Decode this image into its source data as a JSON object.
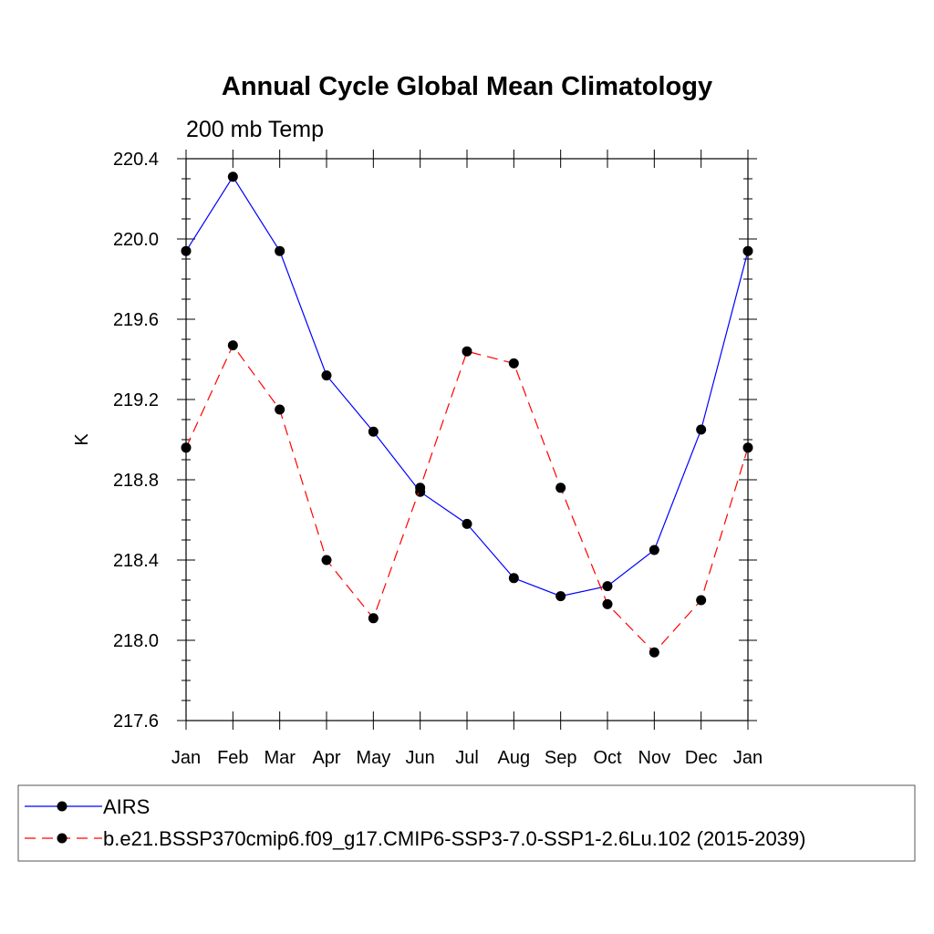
{
  "chart_data": {
    "type": "line",
    "title": "Annual Cycle Global Mean Climatology",
    "subtitle": "200 mb Temp",
    "xlabel": "",
    "ylabel": "K",
    "categories": [
      "Jan",
      "Feb",
      "Mar",
      "Apr",
      "May",
      "Jun",
      "Jul",
      "Aug",
      "Sep",
      "Oct",
      "Nov",
      "Dec",
      "Jan"
    ],
    "ylim": [
      217.6,
      220.4
    ],
    "yticks": [
      217.6,
      218.0,
      218.4,
      218.8,
      219.2,
      219.6,
      220.0,
      220.4
    ],
    "ytick_labels": [
      "217.6",
      "218.0",
      "218.4",
      "218.8",
      "219.2",
      "219.6",
      "220.0",
      "220.4"
    ],
    "series": [
      {
        "name": "AIRS",
        "color": "#0000ff",
        "dash": "solid",
        "values": [
          219.94,
          220.31,
          219.94,
          219.32,
          219.04,
          218.74,
          218.58,
          218.31,
          218.22,
          218.27,
          218.45,
          219.05,
          219.94
        ]
      },
      {
        "name": "b.e21.BSSP370cmip6.f09_g17.CMIP6-SSP3-7.0-SSP1-2.6Lu.102 (2015-2039)",
        "color": "#ff0000",
        "dash": "dashed",
        "values": [
          218.96,
          219.47,
          219.15,
          218.4,
          218.11,
          218.76,
          219.44,
          219.38,
          218.76,
          218.18,
          217.94,
          218.2,
          218.96
        ]
      }
    ],
    "grid": false,
    "legend_position": "bottom"
  }
}
